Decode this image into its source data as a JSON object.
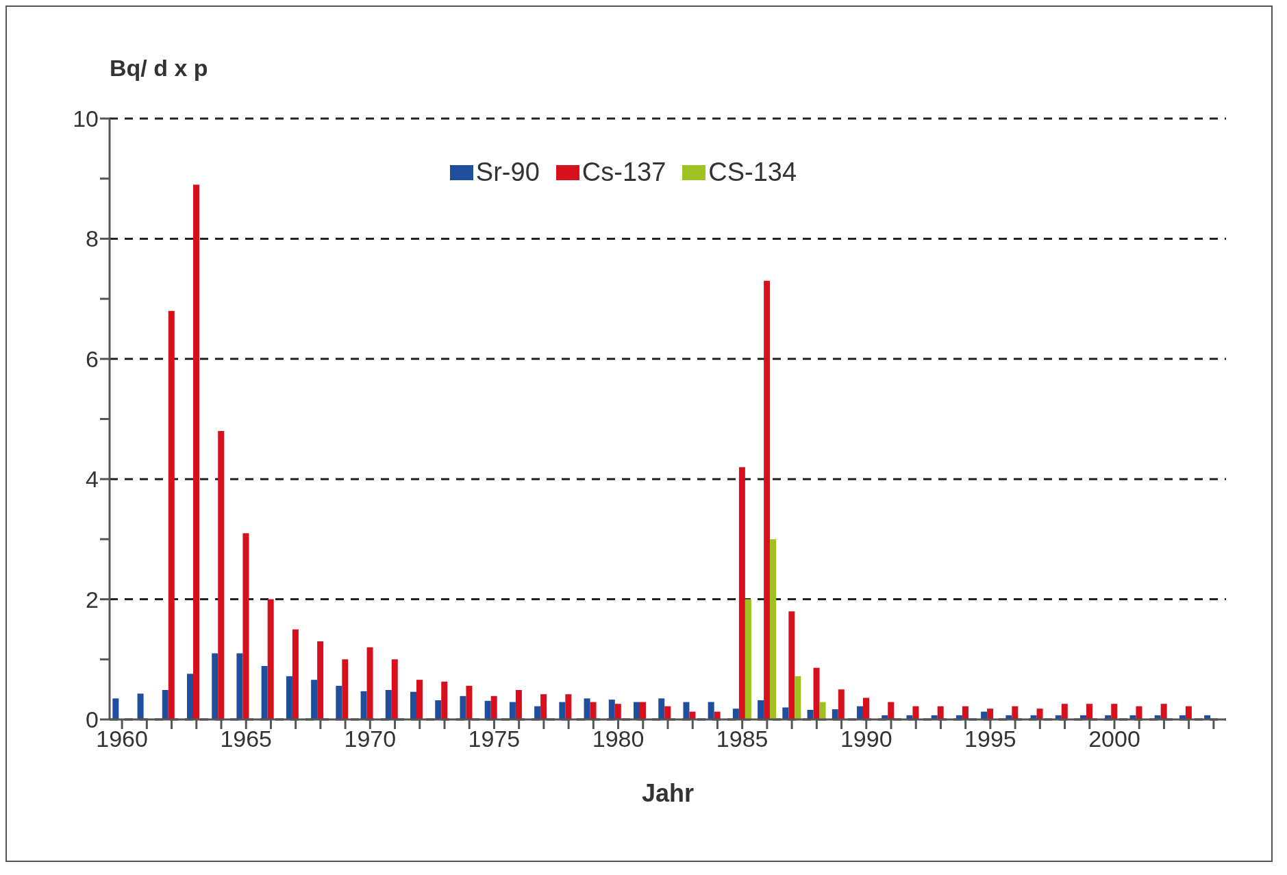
{
  "chart_data": {
    "type": "bar",
    "ylabel": "Bq/ d x p",
    "xlabel": "Jahr",
    "categories": [
      "1960",
      null,
      null,
      null,
      null,
      "1965",
      null,
      null,
      null,
      null,
      "1970",
      null,
      null,
      null,
      null,
      "1975",
      null,
      null,
      null,
      null,
      "1980",
      null,
      null,
      null,
      null,
      "1985",
      null,
      null,
      null,
      null,
      "1990",
      null,
      null,
      null,
      null,
      "1995",
      null,
      null,
      null,
      null,
      "2000",
      null,
      null,
      null,
      null
    ],
    "series": [
      {
        "name": "Sr-90",
        "color": "#1f4e9c",
        "values": [
          0.35,
          0.43,
          0.49,
          0.76,
          1.1,
          1.1,
          0.89,
          0.72,
          0.66,
          0.56,
          0.47,
          0.49,
          0.46,
          0.32,
          0.39,
          0.31,
          0.29,
          0.22,
          0.29,
          0.35,
          0.33,
          0.29,
          0.35,
          0.29,
          0.29,
          0.18,
          0.32,
          0.2,
          0.16,
          0.17,
          0.22,
          0.07,
          0.07,
          0.07,
          0.07,
          0.13,
          0.07,
          0.07,
          0.07,
          0.07,
          0.07,
          0.07,
          0.07,
          0.07,
          0.07
        ]
      },
      {
        "name": "Cs-137",
        "color": "#d7101e",
        "values": [
          null,
          null,
          6.8,
          8.9,
          4.8,
          3.1,
          2.0,
          1.5,
          1.3,
          1.0,
          1.2,
          1.0,
          0.66,
          0.63,
          0.56,
          0.39,
          0.49,
          0.42,
          0.42,
          0.29,
          0.26,
          0.29,
          0.22,
          0.13,
          0.13,
          4.2,
          7.3,
          1.8,
          0.86,
          0.5,
          0.36,
          0.29,
          0.22,
          0.22,
          0.22,
          0.18,
          0.22,
          0.18,
          0.26,
          0.26,
          0.26,
          0.22,
          0.26,
          0.22,
          null
        ]
      },
      {
        "name": "CS-134",
        "color": "#9ec21f",
        "values": [
          null,
          null,
          null,
          null,
          null,
          null,
          null,
          null,
          null,
          null,
          null,
          null,
          null,
          null,
          null,
          null,
          null,
          null,
          null,
          null,
          null,
          null,
          null,
          null,
          null,
          2.0,
          3.0,
          0.72,
          0.29,
          null,
          null,
          null,
          null,
          null,
          null,
          null,
          null,
          null,
          null,
          null,
          null,
          null,
          null,
          null,
          null
        ]
      }
    ],
    "ylim": [
      0,
      10
    ],
    "yticks": [
      0,
      {
        "value": 1,
        "label": null
      },
      2,
      {
        "value": 3,
        "label": null
      },
      4,
      {
        "value": 5,
        "label": null
      },
      6,
      {
        "value": 7,
        "label": null
      },
      8,
      {
        "value": 9,
        "label": null
      },
      10
    ],
    "grid": "y",
    "legend": "top"
  }
}
